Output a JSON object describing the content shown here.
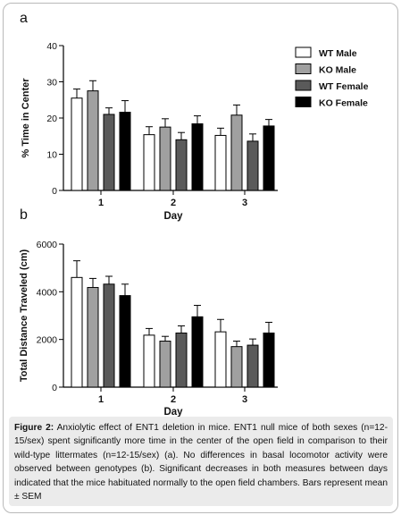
{
  "chart_data": [
    {
      "type": "bar",
      "panel": "a",
      "ylabel": "% Time in Center",
      "xlabel": "Day",
      "categories": [
        "1",
        "2",
        "3"
      ],
      "yticks": [
        "0",
        "10",
        "20",
        "30",
        "40"
      ],
      "ylim": [
        0,
        40
      ],
      "legend_position": "top-right",
      "series": [
        {
          "name": "WT Male",
          "color": "#ffffff",
          "values": [
            25.5,
            15.4,
            15.2
          ],
          "errors": [
            2.5,
            2.2,
            2.0
          ]
        },
        {
          "name": "KO Male",
          "color": "#a0a0a0",
          "values": [
            27.5,
            17.5,
            20.8
          ],
          "errors": [
            2.8,
            2.3,
            2.8
          ]
        },
        {
          "name": "WT Female",
          "color": "#5a5a5a",
          "values": [
            21.0,
            14.0,
            13.6
          ],
          "errors": [
            1.8,
            2.0,
            2.0
          ]
        },
        {
          "name": "KO Female",
          "color": "#000000",
          "values": [
            21.6,
            18.4,
            17.8
          ],
          "errors": [
            3.2,
            2.2,
            1.8
          ]
        }
      ]
    },
    {
      "type": "bar",
      "panel": "b",
      "ylabel": "Total Distance Traveled (cm)",
      "xlabel": "Day",
      "categories": [
        "1",
        "2",
        "3"
      ],
      "yticks": [
        "0",
        "2000",
        "4000",
        "6000"
      ],
      "ylim": [
        0,
        6000
      ],
      "series": [
        {
          "name": "WT Male",
          "color": "#ffffff",
          "values": [
            4600,
            2180,
            2320
          ],
          "errors": [
            700,
            280,
            520
          ]
        },
        {
          "name": "KO Male",
          "color": "#a0a0a0",
          "values": [
            4180,
            1930,
            1700
          ],
          "errors": [
            380,
            200,
            230
          ]
        },
        {
          "name": "WT Female",
          "color": "#5a5a5a",
          "values": [
            4320,
            2270,
            1760
          ],
          "errors": [
            330,
            300,
            260
          ]
        },
        {
          "name": "KO Female",
          "color": "#000000",
          "values": [
            3840,
            2950,
            2270
          ],
          "errors": [
            480,
            480,
            450
          ]
        }
      ]
    }
  ],
  "caption": {
    "label": "Figure 2:",
    "text": " Anxiolytic effect of ENT1 deletion in mice. ENT1 null mice of both sexes (n=12-15/sex) spent significantly more time in the center of the open field in comparison to their wild-type littermates (n=12-15/sex) (a). No differences in basal locomotor activity were observed between genotypes (b). Significant decreases in both measures between days indicated that the mice habituated normally to the open field chambers. Bars represent mean ± SEM"
  }
}
